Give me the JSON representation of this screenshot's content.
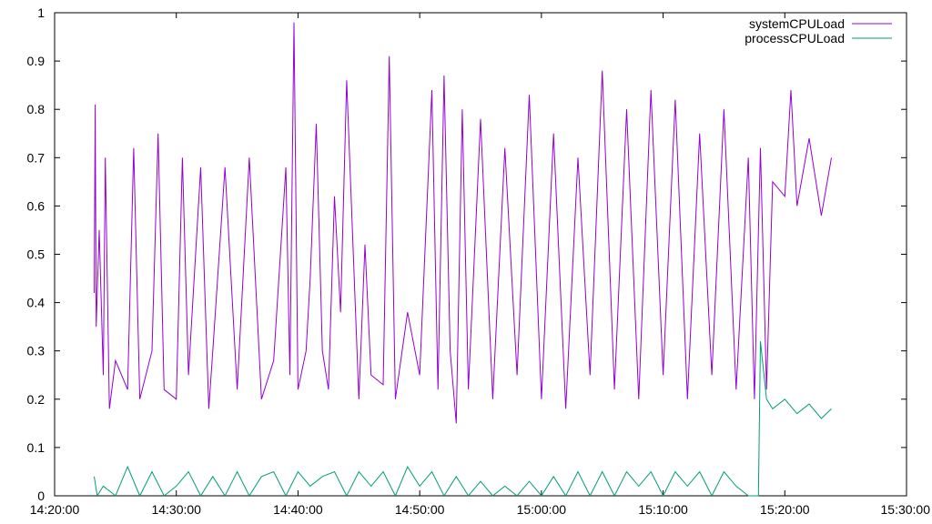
{
  "chart_data": {
    "type": "line",
    "title": "",
    "xlabel": "",
    "ylabel": "",
    "x_axis": {
      "type": "time",
      "range": [
        "14:20:00",
        "15:30:00"
      ],
      "ticks": [
        "14:20:00",
        "14:30:00",
        "14:40:00",
        "14:50:00",
        "15:00:00",
        "15:10:00",
        "15:20:00",
        "15:30:00"
      ]
    },
    "y_axis": {
      "range": [
        0,
        1
      ],
      "ticks": [
        "0",
        "0.1",
        "0.2",
        "0.3",
        "0.4",
        "0.5",
        "0.6",
        "0.7",
        "0.8",
        "0.9",
        "1"
      ]
    },
    "grid": false,
    "legend_position": "top-right",
    "series": [
      {
        "name": "systemCPULoad",
        "color": "#9400d3",
        "x": [
          "14:23:15",
          "14:23:20",
          "14:23:25",
          "14:23:40",
          "14:24:00",
          "14:24:10",
          "14:24:30",
          "14:25:00",
          "14:26:00",
          "14:26:30",
          "14:27:00",
          "14:28:00",
          "14:28:30",
          "14:29:00",
          "14:30:00",
          "14:30:30",
          "14:31:00",
          "14:32:00",
          "14:32:40",
          "14:33:00",
          "14:34:00",
          "14:35:00",
          "14:36:00",
          "14:37:00",
          "14:38:00",
          "14:39:00",
          "14:39:20",
          "14:39:40",
          "14:40:00",
          "14:40:40",
          "14:41:00",
          "14:41:30",
          "14:42:00",
          "14:42:30",
          "14:43:00",
          "14:43:30",
          "14:44:00",
          "14:45:00",
          "14:45:30",
          "14:46:00",
          "14:47:00",
          "14:47:30",
          "14:48:00",
          "14:49:00",
          "14:50:00",
          "14:51:00",
          "14:51:30",
          "14:52:00",
          "14:52:30",
          "14:53:00",
          "14:53:30",
          "14:54:00",
          "14:55:00",
          "14:56:00",
          "14:57:00",
          "14:58:00",
          "14:59:00",
          "15:00:00",
          "15:01:00",
          "15:02:00",
          "15:03:00",
          "15:04:00",
          "15:05:00",
          "15:06:00",
          "15:07:00",
          "15:08:00",
          "15:09:00",
          "15:10:00",
          "15:11:00",
          "15:12:00",
          "15:13:00",
          "15:14:00",
          "15:15:00",
          "15:16:00",
          "15:17:00",
          "15:17:30",
          "15:18:00",
          "15:18:30",
          "15:19:00",
          "15:20:00",
          "15:20:30",
          "15:21:00",
          "15:22:00",
          "15:23:00",
          "15:23:50"
        ],
        "values": [
          0.42,
          0.81,
          0.35,
          0.55,
          0.25,
          0.7,
          0.18,
          0.28,
          0.22,
          0.72,
          0.2,
          0.3,
          0.75,
          0.22,
          0.2,
          0.7,
          0.25,
          0.68,
          0.18,
          0.3,
          0.68,
          0.22,
          0.7,
          0.2,
          0.28,
          0.68,
          0.25,
          0.98,
          0.22,
          0.3,
          0.45,
          0.77,
          0.3,
          0.22,
          0.62,
          0.38,
          0.86,
          0.2,
          0.52,
          0.25,
          0.23,
          0.91,
          0.2,
          0.38,
          0.25,
          0.84,
          0.22,
          0.87,
          0.3,
          0.15,
          0.8,
          0.22,
          0.78,
          0.2,
          0.72,
          0.25,
          0.83,
          0.2,
          0.75,
          0.18,
          0.7,
          0.25,
          0.88,
          0.22,
          0.8,
          0.2,
          0.84,
          0.25,
          0.82,
          0.2,
          0.75,
          0.25,
          0.8,
          0.22,
          0.7,
          0.2,
          0.72,
          0.22,
          0.65,
          0.62,
          0.84,
          0.6,
          0.74,
          0.58,
          0.7
        ]
      },
      {
        "name": "processCPULoad",
        "color": "#009e73",
        "x": [
          "14:23:15",
          "14:23:30",
          "14:24:00",
          "14:25:00",
          "14:26:00",
          "14:27:00",
          "14:28:00",
          "14:29:00",
          "14:30:00",
          "14:31:00",
          "14:32:00",
          "14:33:00",
          "14:34:00",
          "14:35:00",
          "14:36:00",
          "14:37:00",
          "14:38:00",
          "14:39:00",
          "14:40:00",
          "14:41:00",
          "14:42:00",
          "14:43:00",
          "14:44:00",
          "14:45:00",
          "14:46:00",
          "14:47:00",
          "14:48:00",
          "14:49:00",
          "14:50:00",
          "14:51:00",
          "14:52:00",
          "14:53:00",
          "14:54:00",
          "14:55:00",
          "14:56:00",
          "14:57:00",
          "14:58:00",
          "14:59:00",
          "15:00:00",
          "15:01:00",
          "15:02:00",
          "15:03:00",
          "15:04:00",
          "15:05:00",
          "15:06:00",
          "15:07:00",
          "15:08:00",
          "15:09:00",
          "15:10:00",
          "15:11:00",
          "15:12:00",
          "15:13:00",
          "15:14:00",
          "15:15:00",
          "15:16:00",
          "15:17:00",
          "15:17:50",
          "15:18:00",
          "15:18:30",
          "15:19:00",
          "15:20:00",
          "15:21:00",
          "15:22:00",
          "15:23:00",
          "15:23:50"
        ],
        "values": [
          0.04,
          0.0,
          0.02,
          0.0,
          0.06,
          0.0,
          0.05,
          0.0,
          0.02,
          0.05,
          0.0,
          0.04,
          0.0,
          0.05,
          0.0,
          0.04,
          0.05,
          0.0,
          0.05,
          0.02,
          0.04,
          0.05,
          0.0,
          0.05,
          0.02,
          0.05,
          0.0,
          0.06,
          0.02,
          0.05,
          0.0,
          0.04,
          0.0,
          0.03,
          0.0,
          0.02,
          0.0,
          0.03,
          0.0,
          0.04,
          0.0,
          0.05,
          0.0,
          0.05,
          0.0,
          0.05,
          0.02,
          0.05,
          0.0,
          0.05,
          0.02,
          0.05,
          0.0,
          0.05,
          0.02,
          0.0,
          0.0,
          0.32,
          0.2,
          0.18,
          0.2,
          0.17,
          0.19,
          0.16,
          0.18
        ]
      }
    ]
  }
}
